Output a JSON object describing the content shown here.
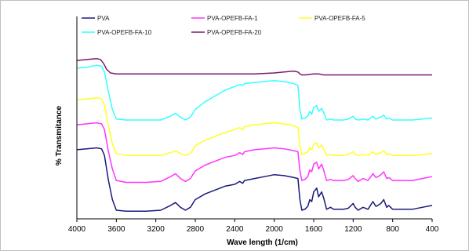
{
  "chart_data": {
    "type": "line",
    "title": "",
    "xlabel": "Wave length (1/cm)",
    "ylabel": "% Transmitance",
    "xlim": [
      4000,
      400
    ],
    "x_ticks": [
      "4000",
      "3600",
      "3200",
      "2800",
      "2400",
      "2000",
      "1600",
      "1200",
      "800",
      "400"
    ],
    "y_ticks_shown": false,
    "grid": false,
    "legend_position": "top",
    "series": [
      {
        "name": "PVA",
        "color": "#1a1a7a",
        "points": [
          [
            4000,
            72
          ],
          [
            3900,
            73
          ],
          [
            3800,
            74
          ],
          [
            3750,
            73
          ],
          [
            3720,
            66
          ],
          [
            3680,
            40
          ],
          [
            3640,
            20
          ],
          [
            3600,
            9
          ],
          [
            3500,
            8
          ],
          [
            3300,
            8
          ],
          [
            3150,
            9
          ],
          [
            3050,
            14
          ],
          [
            3000,
            17
          ],
          [
            2950,
            12
          ],
          [
            2900,
            9
          ],
          [
            2850,
            12
          ],
          [
            2800,
            20
          ],
          [
            2700,
            26
          ],
          [
            2600,
            30
          ],
          [
            2500,
            34
          ],
          [
            2400,
            36
          ],
          [
            2350,
            39
          ],
          [
            2320,
            37
          ],
          [
            2300,
            40
          ],
          [
            2200,
            42
          ],
          [
            2100,
            44
          ],
          [
            2000,
            46
          ],
          [
            1900,
            45
          ],
          [
            1800,
            43
          ],
          [
            1760,
            42
          ],
          [
            1740,
            20
          ],
          [
            1720,
            9
          ],
          [
            1690,
            10
          ],
          [
            1660,
            13
          ],
          [
            1640,
            20
          ],
          [
            1620,
            18
          ],
          [
            1600,
            28
          ],
          [
            1570,
            32
          ],
          [
            1550,
            23
          ],
          [
            1520,
            28
          ],
          [
            1500,
            22
          ],
          [
            1470,
            10
          ],
          [
            1430,
            12
          ],
          [
            1400,
            10
          ],
          [
            1350,
            10
          ],
          [
            1300,
            10
          ],
          [
            1250,
            11
          ],
          [
            1200,
            16
          ],
          [
            1180,
            12
          ],
          [
            1150,
            9
          ],
          [
            1100,
            12
          ],
          [
            1050,
            10
          ],
          [
            1000,
            18
          ],
          [
            970,
            13
          ],
          [
            950,
            14
          ],
          [
            920,
            16
          ],
          [
            890,
            20
          ],
          [
            860,
            12
          ],
          [
            840,
            14
          ],
          [
            800,
            10
          ],
          [
            700,
            10
          ],
          [
            600,
            10
          ],
          [
            500,
            12
          ],
          [
            400,
            14
          ]
        ]
      },
      {
        "name": "PVA-OPEFB-FA-1",
        "color": "#ff33ff",
        "points": [
          [
            4000,
            98
          ],
          [
            3900,
            99
          ],
          [
            3800,
            100
          ],
          [
            3750,
            99
          ],
          [
            3720,
            93
          ],
          [
            3680,
            70
          ],
          [
            3640,
            52
          ],
          [
            3600,
            40
          ],
          [
            3500,
            38
          ],
          [
            3300,
            38
          ],
          [
            3150,
            39
          ],
          [
            3050,
            44
          ],
          [
            3000,
            47
          ],
          [
            2950,
            42
          ],
          [
            2900,
            39
          ],
          [
            2850,
            42
          ],
          [
            2800,
            50
          ],
          [
            2700,
            56
          ],
          [
            2600,
            60
          ],
          [
            2500,
            64
          ],
          [
            2400,
            66
          ],
          [
            2350,
            69
          ],
          [
            2320,
            67
          ],
          [
            2300,
            70
          ],
          [
            2200,
            72
          ],
          [
            2100,
            73
          ],
          [
            2000,
            74
          ],
          [
            1900,
            73
          ],
          [
            1800,
            71
          ],
          [
            1760,
            70
          ],
          [
            1740,
            50
          ],
          [
            1720,
            40
          ],
          [
            1690,
            41
          ],
          [
            1660,
            44
          ],
          [
            1640,
            51
          ],
          [
            1620,
            49
          ],
          [
            1600,
            57
          ],
          [
            1570,
            59
          ],
          [
            1550,
            52
          ],
          [
            1520,
            57
          ],
          [
            1500,
            51
          ],
          [
            1470,
            40
          ],
          [
            1430,
            41
          ],
          [
            1400,
            40
          ],
          [
            1350,
            40
          ],
          [
            1300,
            40
          ],
          [
            1250,
            41
          ],
          [
            1200,
            45
          ],
          [
            1180,
            42
          ],
          [
            1150,
            39
          ],
          [
            1100,
            42
          ],
          [
            1050,
            40
          ],
          [
            1000,
            47
          ],
          [
            970,
            43
          ],
          [
            950,
            44
          ],
          [
            920,
            46
          ],
          [
            890,
            49
          ],
          [
            860,
            42
          ],
          [
            840,
            43
          ],
          [
            800,
            40
          ],
          [
            700,
            40
          ],
          [
            600,
            40
          ],
          [
            500,
            42
          ],
          [
            400,
            44
          ]
        ]
      },
      {
        "name": "PVA-OPEFB-FA-5",
        "color": "#ffff22",
        "points": [
          [
            4000,
            124
          ],
          [
            3900,
            125
          ],
          [
            3800,
            126
          ],
          [
            3750,
            125
          ],
          [
            3720,
            119
          ],
          [
            3680,
            96
          ],
          [
            3640,
            78
          ],
          [
            3600,
            68
          ],
          [
            3500,
            66
          ],
          [
            3300,
            66
          ],
          [
            3150,
            66
          ],
          [
            3050,
            69
          ],
          [
            3000,
            71
          ],
          [
            2950,
            68
          ],
          [
            2900,
            66
          ],
          [
            2850,
            68
          ],
          [
            2800,
            76
          ],
          [
            2700,
            82
          ],
          [
            2600,
            86
          ],
          [
            2500,
            90
          ],
          [
            2400,
            93
          ],
          [
            2350,
            95
          ],
          [
            2320,
            93
          ],
          [
            2300,
            96
          ],
          [
            2200,
            98
          ],
          [
            2100,
            99
          ],
          [
            2000,
            100
          ],
          [
            1900,
            99
          ],
          [
            1800,
            97
          ],
          [
            1760,
            95
          ],
          [
            1740,
            76
          ],
          [
            1720,
            67
          ],
          [
            1690,
            68
          ],
          [
            1660,
            70
          ],
          [
            1640,
            74
          ],
          [
            1620,
            72
          ],
          [
            1600,
            78
          ],
          [
            1570,
            79
          ],
          [
            1550,
            74
          ],
          [
            1520,
            77
          ],
          [
            1500,
            73
          ],
          [
            1470,
            66
          ],
          [
            1430,
            67
          ],
          [
            1400,
            66
          ],
          [
            1350,
            66
          ],
          [
            1300,
            66
          ],
          [
            1250,
            67
          ],
          [
            1200,
            70
          ],
          [
            1180,
            67
          ],
          [
            1150,
            66
          ],
          [
            1100,
            67
          ],
          [
            1050,
            66
          ],
          [
            1000,
            70
          ],
          [
            970,
            67
          ],
          [
            950,
            68
          ],
          [
            920,
            69
          ],
          [
            890,
            71
          ],
          [
            860,
            67
          ],
          [
            840,
            68
          ],
          [
            800,
            66
          ],
          [
            700,
            66
          ],
          [
            600,
            66
          ],
          [
            500,
            67
          ],
          [
            400,
            68
          ]
        ]
      },
      {
        "name": "PVA-OPEFB-FA-10",
        "color": "#33ffff",
        "points": [
          [
            4000,
            157
          ],
          [
            3900,
            158
          ],
          [
            3800,
            160
          ],
          [
            3750,
            159
          ],
          [
            3720,
            153
          ],
          [
            3680,
            132
          ],
          [
            3640,
            114
          ],
          [
            3600,
            104
          ],
          [
            3500,
            103
          ],
          [
            3300,
            103
          ],
          [
            3150,
            103
          ],
          [
            3050,
            107
          ],
          [
            3000,
            110
          ],
          [
            2950,
            106
          ],
          [
            2900,
            103
          ],
          [
            2850,
            106
          ],
          [
            2800,
            114
          ],
          [
            2700,
            122
          ],
          [
            2600,
            128
          ],
          [
            2500,
            134
          ],
          [
            2400,
            138
          ],
          [
            2350,
            140
          ],
          [
            2320,
            139
          ],
          [
            2300,
            141
          ],
          [
            2200,
            142
          ],
          [
            2100,
            143
          ],
          [
            2000,
            144
          ],
          [
            1900,
            143
          ],
          [
            1800,
            141
          ],
          [
            1760,
            139
          ],
          [
            1740,
            114
          ],
          [
            1720,
            104
          ],
          [
            1690,
            105
          ],
          [
            1660,
            107
          ],
          [
            1640,
            112
          ],
          [
            1620,
            109
          ],
          [
            1600,
            116
          ],
          [
            1570,
            118
          ],
          [
            1550,
            112
          ],
          [
            1520,
            115
          ],
          [
            1500,
            111
          ],
          [
            1470,
            103
          ],
          [
            1430,
            104
          ],
          [
            1400,
            103
          ],
          [
            1350,
            103
          ],
          [
            1300,
            103
          ],
          [
            1250,
            104
          ],
          [
            1200,
            107
          ],
          [
            1180,
            104
          ],
          [
            1150,
            103
          ],
          [
            1100,
            104
          ],
          [
            1050,
            103
          ],
          [
            1000,
            107
          ],
          [
            970,
            104
          ],
          [
            950,
            105
          ],
          [
            920,
            106
          ],
          [
            890,
            108
          ],
          [
            860,
            104
          ],
          [
            840,
            105
          ],
          [
            800,
            103
          ],
          [
            700,
            103
          ],
          [
            600,
            103
          ],
          [
            500,
            104
          ],
          [
            400,
            105
          ]
        ]
      },
      {
        "name": "PVA-OPEFB-FA-20",
        "color": "#7a1a6a",
        "points": [
          [
            4000,
            165
          ],
          [
            3900,
            166
          ],
          [
            3800,
            167
          ],
          [
            3760,
            166
          ],
          [
            3730,
            162
          ],
          [
            3700,
            156
          ],
          [
            3660,
            152
          ],
          [
            3600,
            151
          ],
          [
            3400,
            151
          ],
          [
            3200,
            151
          ],
          [
            3000,
            151
          ],
          [
            2800,
            151
          ],
          [
            2600,
            151
          ],
          [
            2400,
            151
          ],
          [
            2200,
            151
          ],
          [
            2000,
            152
          ],
          [
            1900,
            153
          ],
          [
            1800,
            154
          ],
          [
            1760,
            153
          ],
          [
            1740,
            151
          ],
          [
            1720,
            150
          ],
          [
            1690,
            150
          ],
          [
            1600,
            151
          ],
          [
            1550,
            151
          ],
          [
            1500,
            150
          ],
          [
            1400,
            150
          ],
          [
            1200,
            150
          ],
          [
            1000,
            150
          ],
          [
            800,
            150
          ],
          [
            600,
            150
          ],
          [
            400,
            150
          ]
        ]
      }
    ]
  }
}
